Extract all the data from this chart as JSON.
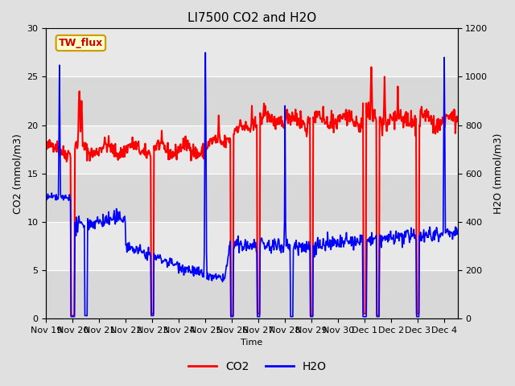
{
  "title": "LI7500 CO2 and H2O",
  "xlabel": "Time",
  "ylabel_left": "CO2 (mmol/m3)",
  "ylabel_right": "H2O (mmol/m3)",
  "annotation_text": "TW_flux",
  "co2_color": "#ff0000",
  "h2o_color": "#0000ff",
  "co2_linewidth": 1.5,
  "h2o_linewidth": 1.2,
  "ylim_left": [
    0,
    30
  ],
  "ylim_right": [
    0,
    1200
  ],
  "yticks_left": [
    0,
    5,
    10,
    15,
    20,
    25,
    30
  ],
  "yticks_right": [
    0,
    200,
    400,
    600,
    800,
    1000,
    1200
  ],
  "fig_bg_color": "#e0e0e0",
  "plot_bg_color": "#e8e8e8",
  "band_colors": [
    "#d8d8d8",
    "#e8e8e8"
  ],
  "grid_color": "#ffffff",
  "legend_co2": "CO2",
  "legend_h2o": "H2O",
  "title_fontsize": 11,
  "tick_labelsize": 8,
  "ylabel_fontsize": 9,
  "annotation_bg": "#ffffcc",
  "annotation_edge": "#cc9900"
}
